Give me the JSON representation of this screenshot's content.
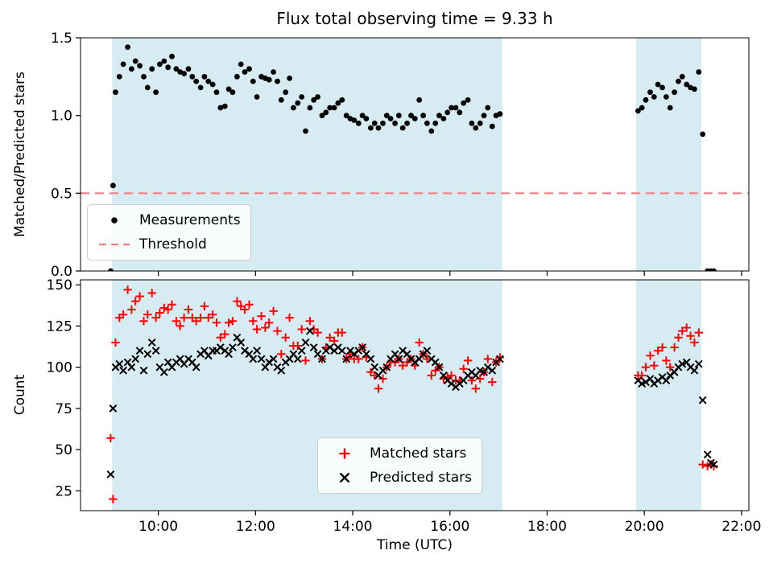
{
  "figure": {
    "background": "#ffffff",
    "title": "Flux total observing time = 9.33 h"
  },
  "chart_data": [
    {
      "type": "scatter",
      "title": "Flux total observing time = 9.33 h",
      "ylabel": "Matched/Predicted stars",
      "xlim": [
        8.4,
        22.15
      ],
      "ylim": [
        0.0,
        1.5
      ],
      "xticks": [
        10,
        12,
        14,
        16,
        18,
        20,
        22
      ],
      "xtick_labels": [
        "10:00",
        "12:00",
        "14:00",
        "16:00",
        "18:00",
        "20:00",
        "22:00"
      ],
      "yticks": [
        0.0,
        0.5,
        1.0,
        1.5
      ],
      "ytick_labels": [
        "0.0",
        "0.5",
        "1.0",
        "1.5"
      ],
      "show_xtick_labels": false,
      "grid": false,
      "shaded_spans": [
        [
          9.05,
          17.08
        ],
        [
          19.83,
          21.17
        ]
      ],
      "shade_color": "#d6ecf2",
      "threshold": {
        "label": "Threshold",
        "value": 0.5,
        "color": "#f08080",
        "linestyle": "dashed"
      },
      "legend_position": "lower left",
      "series": [
        {
          "name": "Measurements",
          "marker": "dot",
          "color": "#000000",
          "x": [
            9.02,
            9.07,
            9.12,
            9.2,
            9.28,
            9.37,
            9.45,
            9.53,
            9.62,
            9.7,
            9.78,
            9.87,
            9.95,
            10.03,
            10.12,
            10.2,
            10.28,
            10.37,
            10.45,
            10.53,
            10.62,
            10.7,
            10.78,
            10.87,
            10.95,
            11.03,
            11.12,
            11.2,
            11.28,
            11.37,
            11.45,
            11.53,
            11.62,
            11.7,
            11.78,
            11.87,
            11.95,
            12.03,
            12.12,
            12.2,
            12.28,
            12.37,
            12.45,
            12.53,
            12.62,
            12.7,
            12.78,
            12.87,
            12.95,
            13.03,
            13.12,
            13.2,
            13.28,
            13.37,
            13.45,
            13.53,
            13.62,
            13.7,
            13.78,
            13.87,
            13.95,
            14.03,
            14.12,
            14.2,
            14.28,
            14.37,
            14.45,
            14.53,
            14.62,
            14.7,
            14.78,
            14.87,
            14.95,
            15.03,
            15.12,
            15.2,
            15.28,
            15.37,
            15.45,
            15.53,
            15.62,
            15.7,
            15.78,
            15.87,
            15.95,
            16.03,
            16.12,
            16.2,
            16.28,
            16.37,
            16.45,
            16.53,
            16.62,
            16.7,
            16.78,
            16.87,
            16.95,
            17.03,
            19.87,
            19.95,
            20.03,
            20.12,
            20.2,
            20.28,
            20.37,
            20.45,
            20.53,
            20.62,
            20.7,
            20.78,
            20.87,
            20.95,
            21.03,
            21.12,
            21.2,
            21.3,
            21.37,
            21.43
          ],
          "y": [
            0.0,
            0.55,
            1.15,
            1.25,
            1.33,
            1.44,
            1.3,
            1.35,
            1.32,
            1.25,
            1.18,
            1.3,
            1.15,
            1.33,
            1.35,
            1.31,
            1.38,
            1.3,
            1.28,
            1.27,
            1.3,
            1.25,
            1.22,
            1.18,
            1.25,
            1.22,
            1.2,
            1.15,
            1.05,
            1.06,
            1.17,
            1.15,
            1.25,
            1.33,
            1.28,
            1.3,
            1.22,
            1.12,
            1.25,
            1.24,
            1.23,
            1.28,
            1.22,
            1.1,
            1.15,
            1.24,
            1.05,
            1.08,
            1.12,
            0.9,
            1.05,
            1.1,
            1.12,
            1.0,
            1.02,
            1.05,
            1.05,
            1.08,
            1.1,
            1.0,
            0.98,
            0.97,
            0.95,
            1.0,
            0.98,
            0.92,
            0.95,
            0.92,
            0.95,
            1.0,
            0.98,
            0.95,
            1.0,
            0.92,
            0.95,
            1.0,
            0.98,
            1.1,
            1.0,
            0.95,
            0.9,
            0.95,
            1.0,
            0.98,
            1.02,
            1.05,
            1.05,
            1.02,
            1.08,
            1.1,
            0.95,
            0.92,
            0.95,
            1.0,
            1.05,
            0.93,
            1.0,
            1.01,
            1.03,
            1.05,
            1.1,
            1.15,
            1.12,
            1.2,
            1.18,
            1.12,
            1.05,
            1.15,
            1.22,
            1.25,
            1.2,
            1.18,
            1.17,
            1.28,
            0.88,
            0.0,
            0.0,
            0.0
          ]
        }
      ]
    },
    {
      "type": "scatter",
      "xlabel": "Time (UTC)",
      "ylabel": "Count",
      "xlim": [
        8.4,
        22.15
      ],
      "ylim": [
        13,
        153
      ],
      "xticks": [
        10,
        12,
        14,
        16,
        18,
        20,
        22
      ],
      "xtick_labels": [
        "10:00",
        "12:00",
        "14:00",
        "16:00",
        "18:00",
        "20:00",
        "22:00"
      ],
      "yticks": [
        25,
        50,
        75,
        100,
        125,
        150
      ],
      "ytick_labels": [
        "25",
        "50",
        "75",
        "100",
        "125",
        "150"
      ],
      "show_xtick_labels": true,
      "grid": false,
      "shaded_spans": [
        [
          9.05,
          17.08
        ],
        [
          19.83,
          21.17
        ]
      ],
      "shade_color": "#d6ecf2",
      "legend_position": "lower center",
      "series": [
        {
          "name": "Matched stars",
          "marker": "plus",
          "color": "#ff0000",
          "x": [
            9.02,
            9.07,
            9.12,
            9.2,
            9.28,
            9.37,
            9.45,
            9.53,
            9.62,
            9.7,
            9.78,
            9.87,
            9.95,
            10.03,
            10.12,
            10.2,
            10.28,
            10.37,
            10.45,
            10.53,
            10.62,
            10.7,
            10.78,
            10.87,
            10.95,
            11.03,
            11.12,
            11.2,
            11.28,
            11.37,
            11.45,
            11.53,
            11.62,
            11.7,
            11.78,
            11.87,
            11.95,
            12.03,
            12.12,
            12.2,
            12.28,
            12.37,
            12.45,
            12.53,
            12.62,
            12.7,
            12.78,
            12.87,
            12.95,
            13.03,
            13.12,
            13.2,
            13.28,
            13.37,
            13.45,
            13.53,
            13.62,
            13.7,
            13.78,
            13.87,
            13.95,
            14.03,
            14.12,
            14.2,
            14.28,
            14.37,
            14.45,
            14.53,
            14.62,
            14.7,
            14.78,
            14.87,
            14.95,
            15.03,
            15.12,
            15.2,
            15.28,
            15.37,
            15.45,
            15.53,
            15.62,
            15.7,
            15.78,
            15.87,
            15.95,
            16.03,
            16.12,
            16.2,
            16.28,
            16.37,
            16.45,
            16.53,
            16.62,
            16.7,
            16.78,
            16.87,
            16.95,
            17.03,
            19.87,
            19.95,
            20.03,
            20.12,
            20.2,
            20.28,
            20.37,
            20.45,
            20.53,
            20.62,
            20.7,
            20.78,
            20.87,
            20.95,
            21.03,
            21.12,
            21.2,
            21.3,
            21.37,
            21.43
          ],
          "y": [
            57,
            20,
            115,
            130,
            132,
            147,
            135,
            140,
            143,
            128,
            132,
            145,
            130,
            133,
            136,
            135,
            138,
            128,
            125,
            130,
            135,
            130,
            128,
            130,
            137,
            130,
            132,
            127,
            118,
            120,
            127,
            128,
            140,
            137,
            135,
            138,
            128,
            123,
            131,
            124,
            127,
            134,
            122,
            108,
            118,
            130,
            113,
            113,
            123,
            104,
            128,
            123,
            121,
            105,
            112,
            118,
            116,
            121,
            121,
            105,
            108,
            105,
            105,
            112,
            106,
            97,
            95,
            87,
            93,
            100,
            103,
            103,
            105,
            101,
            103,
            105,
            101,
            115,
            108,
            105,
            95,
            98,
            100,
            93,
            94,
            95,
            92,
            92,
            99,
            104,
            92,
            87,
            93,
            97,
            105,
            91,
            103,
            106,
            95,
            95,
            100,
            107,
            101,
            110,
            112,
            104,
            100,
            112,
            118,
            122,
            124,
            119,
            115,
            121,
            41,
            40,
            41,
            40
          ]
        },
        {
          "name": "Predicted stars",
          "marker": "x",
          "color": "#000000",
          "x": [
            9.02,
            9.07,
            9.12,
            9.2,
            9.28,
            9.37,
            9.45,
            9.53,
            9.62,
            9.7,
            9.78,
            9.87,
            9.95,
            10.03,
            10.12,
            10.2,
            10.28,
            10.37,
            10.45,
            10.53,
            10.62,
            10.7,
            10.78,
            10.87,
            10.95,
            11.03,
            11.12,
            11.2,
            11.28,
            11.37,
            11.45,
            11.53,
            11.62,
            11.7,
            11.78,
            11.87,
            11.95,
            12.03,
            12.12,
            12.2,
            12.28,
            12.37,
            12.45,
            12.53,
            12.62,
            12.7,
            12.78,
            12.87,
            12.95,
            13.03,
            13.12,
            13.2,
            13.28,
            13.37,
            13.45,
            13.53,
            13.62,
            13.7,
            13.78,
            13.87,
            13.95,
            14.03,
            14.12,
            14.2,
            14.28,
            14.37,
            14.45,
            14.53,
            14.62,
            14.7,
            14.78,
            14.87,
            14.95,
            15.03,
            15.12,
            15.2,
            15.28,
            15.37,
            15.45,
            15.53,
            15.62,
            15.7,
            15.78,
            15.87,
            15.95,
            16.03,
            16.12,
            16.2,
            16.28,
            16.37,
            16.45,
            16.53,
            16.62,
            16.7,
            16.78,
            16.87,
            16.95,
            17.03,
            19.87,
            19.95,
            20.03,
            20.12,
            20.2,
            20.28,
            20.37,
            20.45,
            20.53,
            20.62,
            20.7,
            20.78,
            20.87,
            20.95,
            21.03,
            21.12,
            21.2,
            21.3,
            21.37,
            21.43
          ],
          "y": [
            35,
            75,
            100,
            102,
            98,
            103,
            100,
            105,
            110,
            98,
            108,
            115,
            110,
            100,
            97,
            103,
            100,
            103,
            105,
            102,
            105,
            103,
            100,
            108,
            110,
            107,
            110,
            110,
            112,
            110,
            108,
            112,
            118,
            115,
            110,
            108,
            105,
            110,
            105,
            100,
            103,
            105,
            100,
            98,
            103,
            105,
            108,
            105,
            110,
            115,
            122,
            112,
            108,
            105,
            110,
            112,
            110,
            112,
            110,
            105,
            110,
            108,
            110,
            112,
            108,
            105,
            100,
            95,
            98,
            100,
            105,
            108,
            105,
            110,
            108,
            105,
            103,
            105,
            108,
            110,
            105,
            103,
            100,
            95,
            92,
            90,
            88,
            90,
            92,
            95,
            97,
            95,
            98,
            97,
            100,
            98,
            103,
            105,
            92,
            90,
            91,
            93,
            90,
            92,
            94,
            92,
            95,
            97,
            100,
            102,
            103,
            100,
            98,
            102,
            80,
            47,
            42,
            41
          ]
        }
      ]
    }
  ]
}
